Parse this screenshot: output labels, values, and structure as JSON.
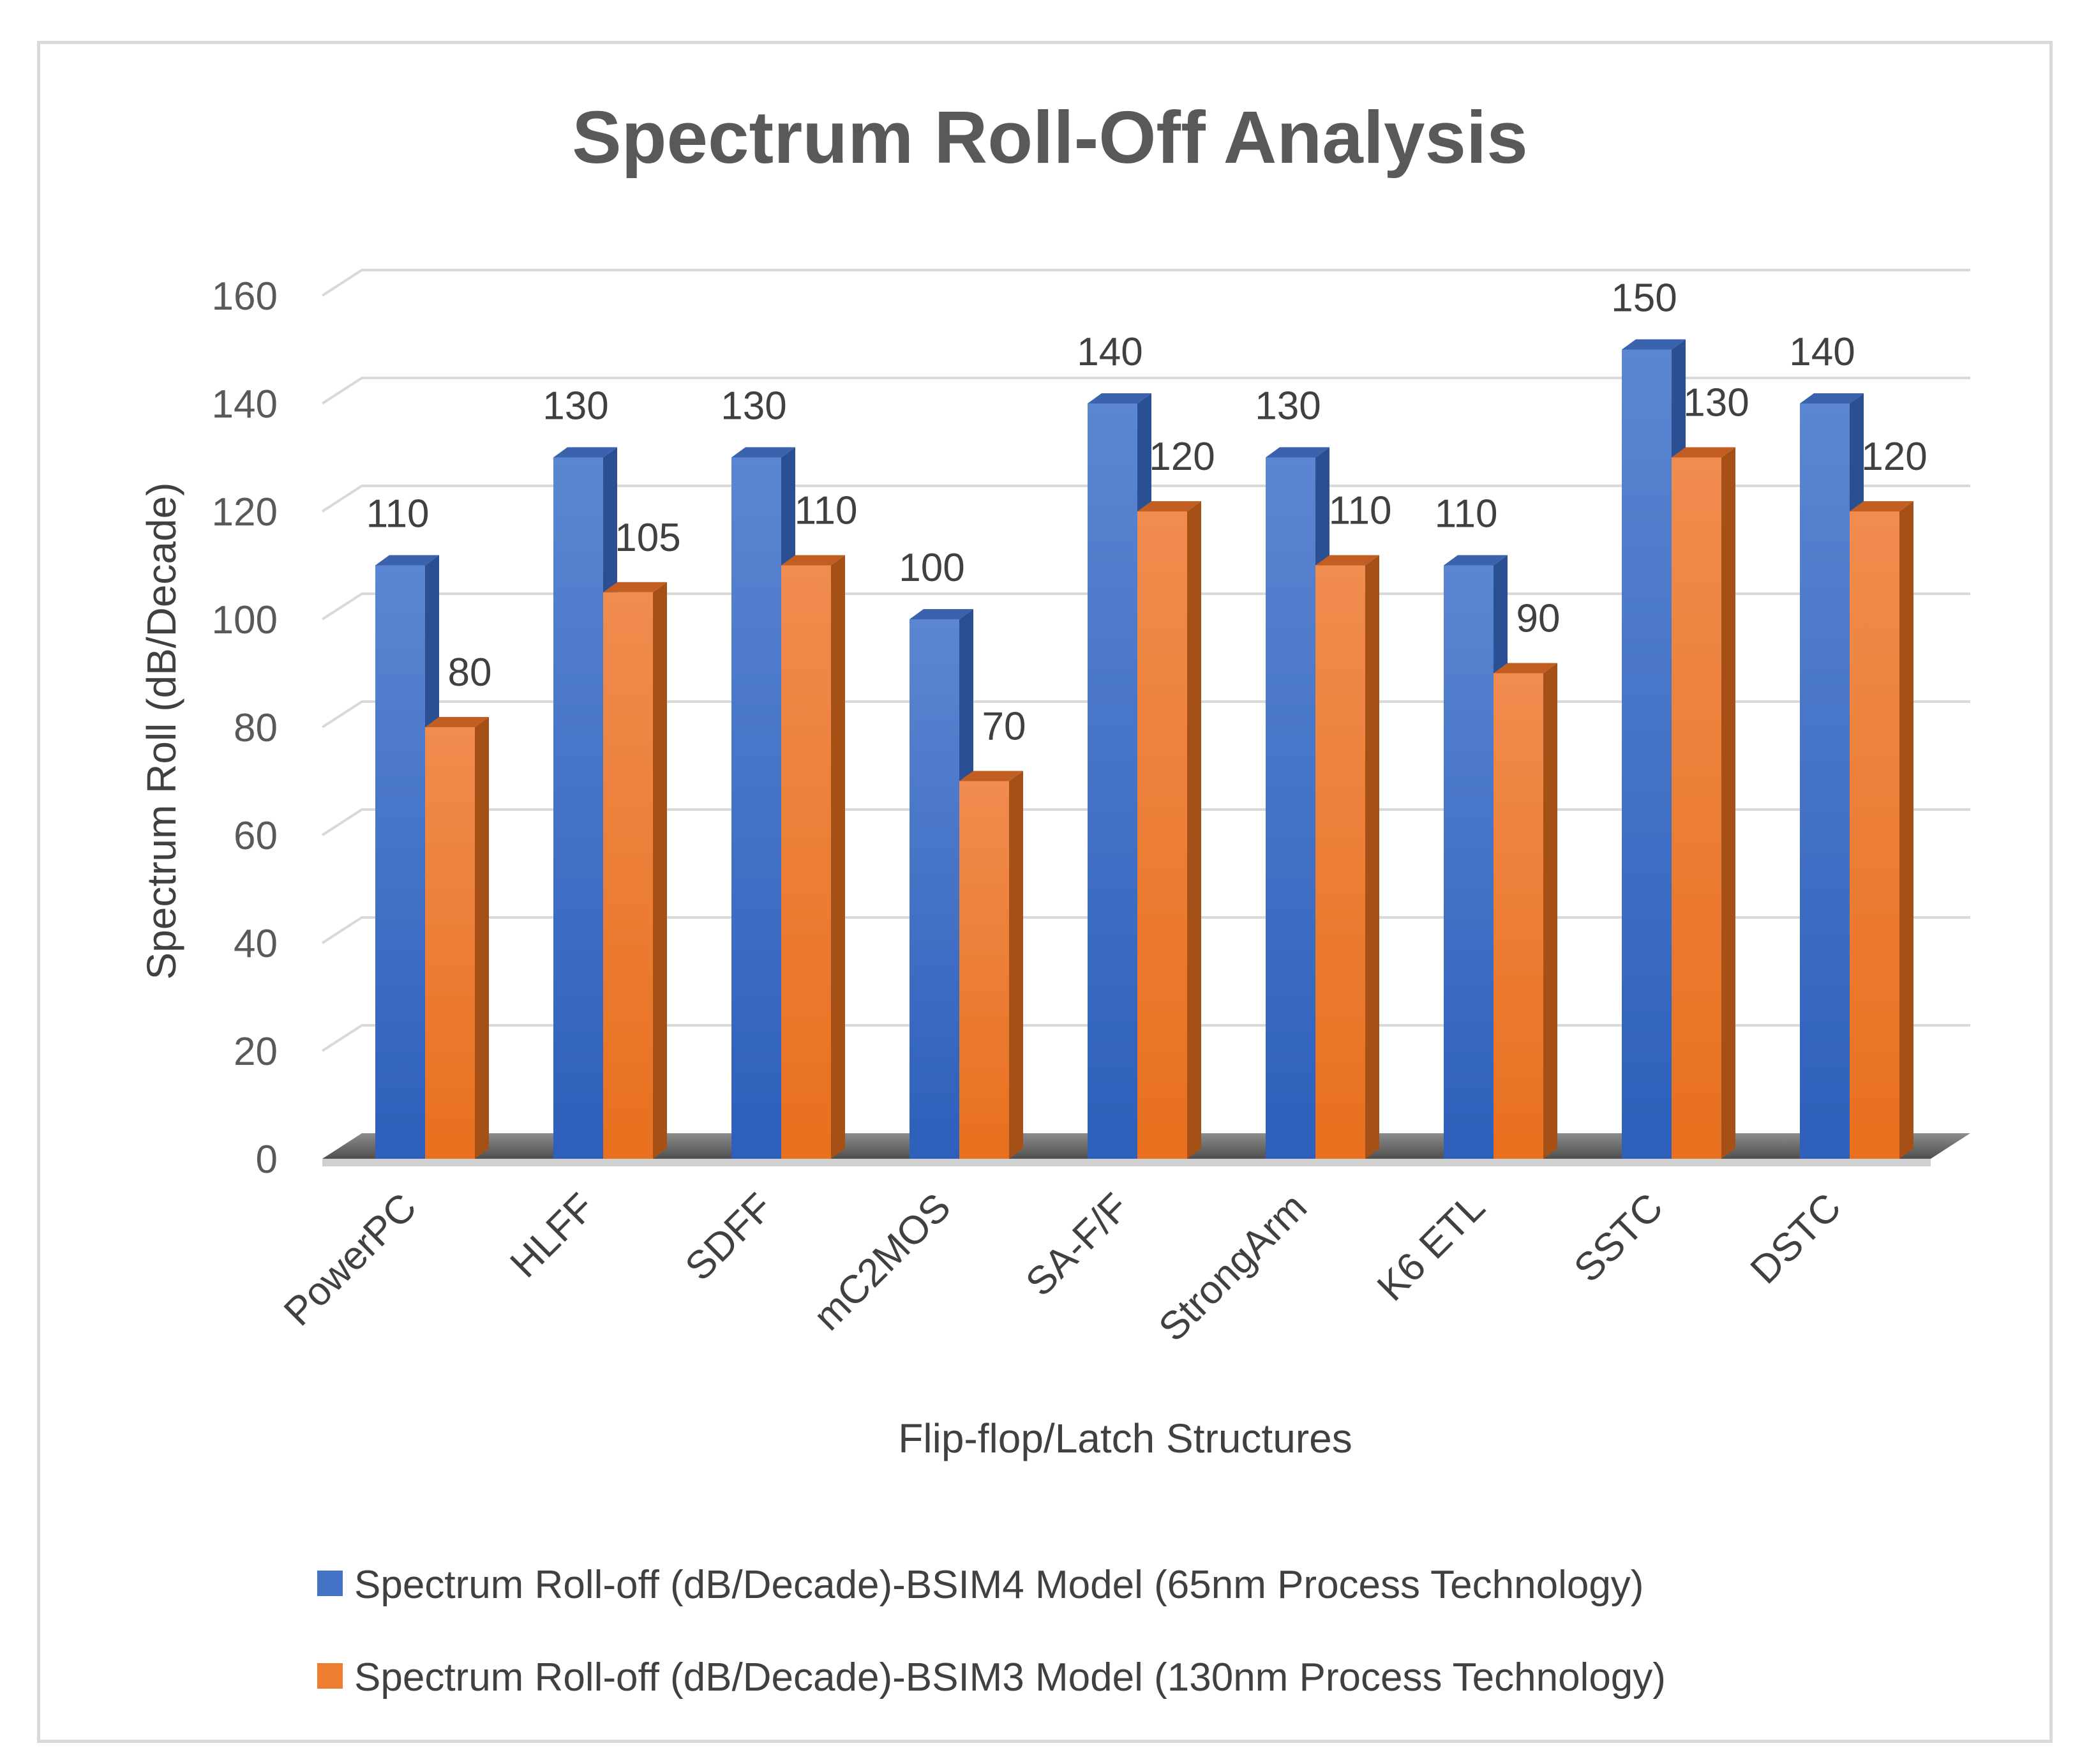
{
  "chart_data": {
    "type": "bar",
    "title": "Spectrum Roll-Off Analysis",
    "xlabel": "Flip-flop/Latch Structures",
    "ylabel": "Spectrum Roll (dB/Decade)",
    "ylim": [
      0,
      160
    ],
    "yticks": [
      "0",
      "20",
      "40",
      "60",
      "80",
      "100",
      "120",
      "140",
      "160"
    ],
    "grid": true,
    "legend_position": "bottom",
    "categories": [
      "PowerPC",
      "HLFF",
      "SDFF",
      "mC2MOS",
      "SA-F/F",
      "StrongArm",
      "K6 ETL",
      "SSTC",
      "DSTC"
    ],
    "series": [
      {
        "name": "Spectrum Roll-off (dB/Decade)-BSIM4 Model (65nm Process Technology)",
        "color": "#4472c4",
        "values": [
          110,
          130,
          130,
          100,
          140,
          130,
          110,
          150,
          140
        ]
      },
      {
        "name": "Spectrum Roll-off (dB/Decade)-BSIM3 Model (130nm Process Technology)",
        "color": "#ed7d31",
        "values": [
          80,
          105,
          110,
          70,
          120,
          110,
          90,
          130,
          120
        ]
      }
    ]
  }
}
